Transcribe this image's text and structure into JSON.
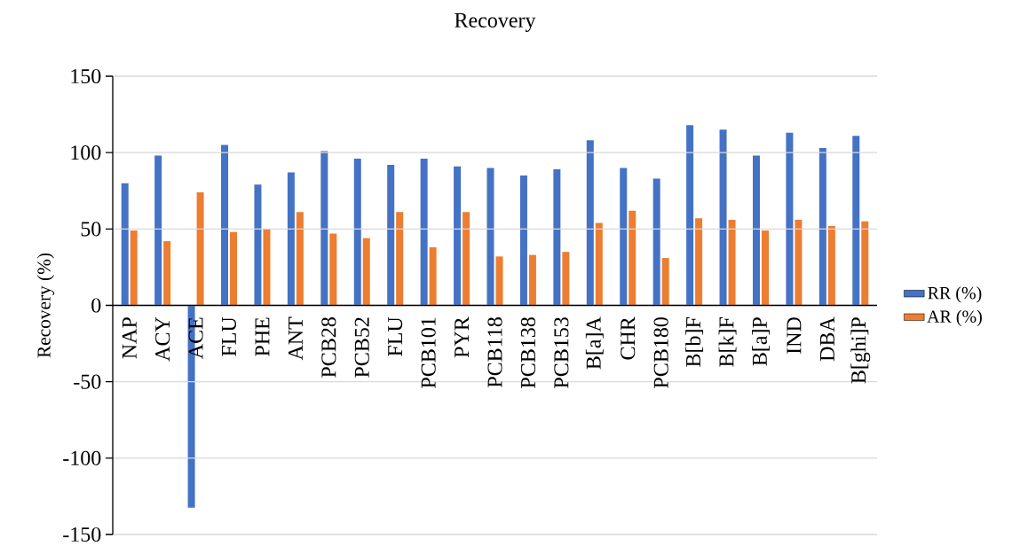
{
  "chart_data": {
    "type": "bar",
    "title": "Recovery",
    "ylabel": "Recovery (%)",
    "categories": [
      "NAP",
      "ACY",
      "ACE",
      "FLU",
      "PHE",
      "ANT",
      "PCB28",
      "PCB52",
      "FLU",
      "PCB101",
      "PYR",
      "PCB118",
      "PCB138",
      "PCB153",
      "B[a]A",
      "CHR",
      "PCB180",
      "B[b]F",
      "B[k]F",
      "B[a]P",
      "IND",
      "DBA",
      "B[ghi]P"
    ],
    "series": [
      {
        "name": "RR (%)",
        "color": "#4472c4",
        "values": [
          80,
          98,
          -132.5,
          105,
          79,
          87,
          101,
          96,
          92,
          96,
          91,
          90,
          85,
          89,
          108,
          90,
          83,
          118,
          115,
          98,
          113,
          103,
          111
        ]
      },
      {
        "name": "AR (%)",
        "color": "#ed7d31",
        "values": [
          49,
          42,
          74,
          48,
          50,
          61,
          47,
          44,
          61,
          38,
          61,
          32,
          33,
          35,
          54,
          62,
          31,
          57,
          56,
          49,
          56,
          52,
          55
        ]
      }
    ],
    "ylim": [
      -150,
      150
    ],
    "yticks": [
      -150,
      -100,
      -50,
      0,
      50,
      100,
      150
    ],
    "grid": "y",
    "legend": "right"
  }
}
